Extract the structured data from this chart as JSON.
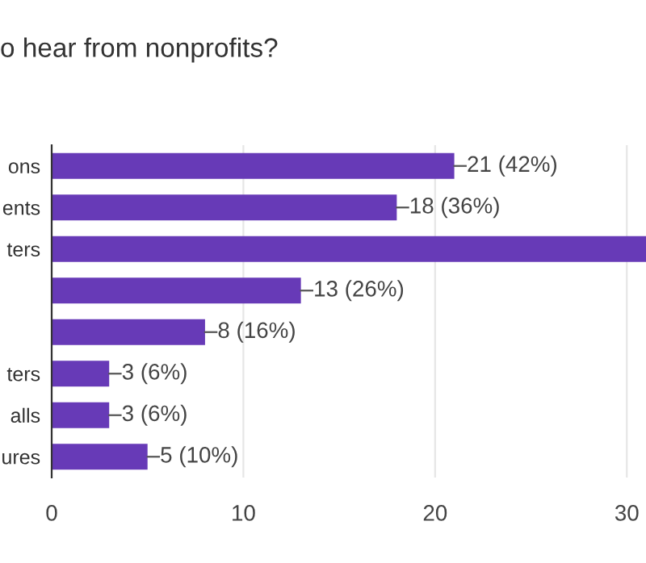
{
  "chart_data": {
    "type": "bar",
    "orientation": "horizontal",
    "title": "o hear from nonprofits?",
    "categories": [
      "ons",
      "ents",
      "ters",
      null,
      null,
      "ters",
      "alls",
      "ures"
    ],
    "values": [
      21,
      18,
      31,
      13,
      8,
      3,
      3,
      5
    ],
    "value_labels": [
      "21 (42%)",
      "18 (36%)",
      null,
      "13 (26%)",
      "8 (16%)",
      "3 (6%)",
      "3 (6%)",
      "5 (10%)"
    ],
    "color": "#673ab7",
    "xlim": [
      0,
      31
    ],
    "xticks": [
      0,
      10,
      20,
      30
    ],
    "grid": "x",
    "legend": false
  }
}
